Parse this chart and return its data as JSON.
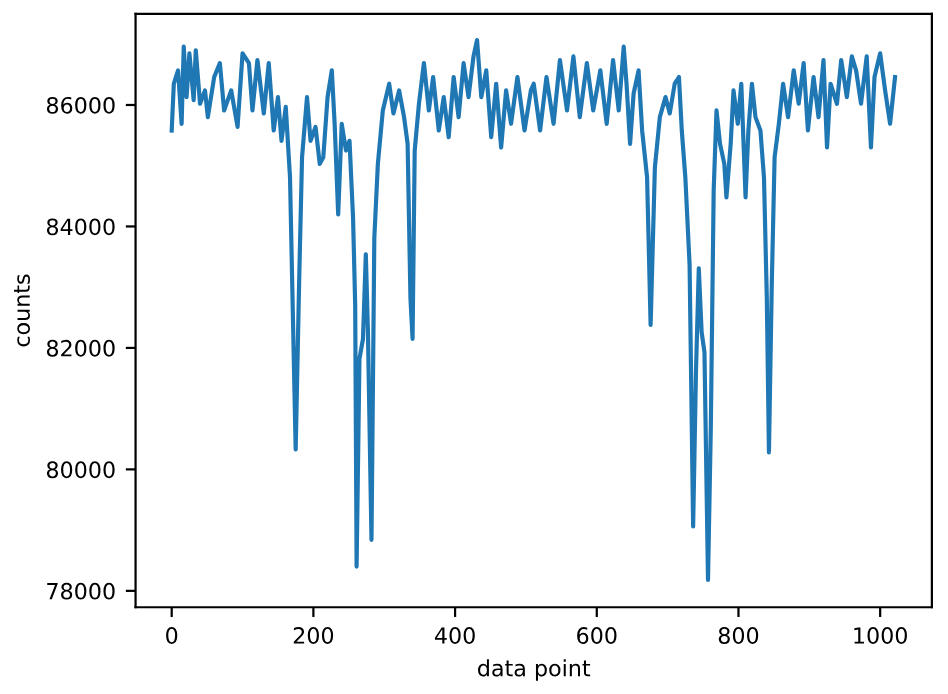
{
  "chart_data": {
    "type": "line",
    "xlabel": "data point",
    "ylabel": "counts",
    "xlim": [
      -51,
      1073
    ],
    "ylim": [
      77730,
      87500
    ],
    "xticks": [
      0,
      200,
      400,
      600,
      800,
      1000
    ],
    "yticks": [
      78000,
      80000,
      82000,
      84000,
      86000
    ],
    "grid": false,
    "marker": "none",
    "line_style": "solid",
    "series": [
      {
        "color": "#1f77b4",
        "x": [
          0,
          3,
          9,
          14,
          17,
          21,
          25,
          31,
          34,
          40,
          47,
          51,
          60,
          68,
          74,
          84,
          93,
          100,
          109,
          114,
          121,
          130,
          137,
          144,
          150,
          155,
          161,
          167,
          175,
          180,
          184,
          191,
          196,
          203,
          209,
          214,
          220,
          226,
          230,
          235,
          240,
          246,
          251,
          256,
          259,
          261,
          265,
          270,
          274,
          277,
          282,
          286,
          291,
          298,
          307,
          313,
          321,
          328,
          333,
          337,
          340,
          343,
          349,
          356,
          363,
          369,
          377,
          384,
          391,
          398,
          405,
          412,
          419,
          426,
          431,
          437,
          444,
          451,
          458,
          465,
          472,
          479,
          488,
          498,
          507,
          511,
          520,
          529,
          539,
          548,
          558,
          567,
          576,
          586,
          595,
          605,
          614,
          623,
          631,
          638,
          642,
          647,
          652,
          659,
          664,
          671,
          676,
          682,
          689,
          697,
          703,
          710,
          716,
          720,
          725,
          731,
          736,
          740,
          744,
          748,
          752,
          757,
          761,
          765,
          769,
          774,
          780,
          783,
          789,
          793,
          799,
          804,
          810,
          814,
          819,
          824,
          831,
          836,
          840,
          843,
          847,
          851,
          857,
          863,
          870,
          878,
          885,
          892,
          898,
          906,
          913,
          920,
          925,
          930,
          939,
          945,
          953,
          960,
          966,
          973,
          981,
          987,
          992,
          1000,
          1007,
          1014,
          1021
        ],
        "values": [
          85580,
          86350,
          86570,
          85690,
          86960,
          86130,
          86850,
          86080,
          86900,
          86020,
          86240,
          85800,
          86460,
          86690,
          85910,
          86240,
          85640,
          86850,
          86690,
          85910,
          86740,
          85860,
          86690,
          85580,
          86130,
          85410,
          85970,
          84810,
          80330,
          83150,
          85140,
          86130,
          85410,
          85640,
          85030,
          85140,
          86130,
          86570,
          85690,
          84200,
          85690,
          85250,
          85410,
          84140,
          82710,
          78400,
          81820,
          82150,
          83540,
          82260,
          78840,
          83810,
          85030,
          85910,
          86350,
          85860,
          86240,
          85800,
          85360,
          82820,
          82150,
          85250,
          86020,
          86690,
          85910,
          86460,
          85580,
          86130,
          85470,
          86460,
          85800,
          86690,
          86130,
          86800,
          87070,
          86130,
          86570,
          85470,
          86350,
          85300,
          86240,
          85690,
          86460,
          85580,
          86240,
          86350,
          85580,
          86460,
          85690,
          86740,
          85910,
          86800,
          85800,
          86690,
          85910,
          86570,
          85690,
          86740,
          85910,
          86960,
          86350,
          85360,
          86190,
          86570,
          85580,
          84810,
          82380,
          84970,
          85800,
          86130,
          85860,
          86350,
          86460,
          85580,
          84810,
          83370,
          79060,
          81600,
          83310,
          82260,
          81930,
          78180,
          80720,
          84590,
          85910,
          85360,
          85030,
          84480,
          85360,
          86240,
          85690,
          86350,
          84480,
          85580,
          86350,
          85800,
          85580,
          84810,
          82820,
          80280,
          83040,
          85140,
          85690,
          86350,
          85800,
          86570,
          86020,
          86690,
          85580,
          86460,
          85800,
          86740,
          85300,
          86350,
          86020,
          86740,
          86130,
          86800,
          86570,
          86020,
          86800,
          85300,
          86460,
          86850,
          86240,
          85690,
          86460
        ]
      }
    ]
  }
}
